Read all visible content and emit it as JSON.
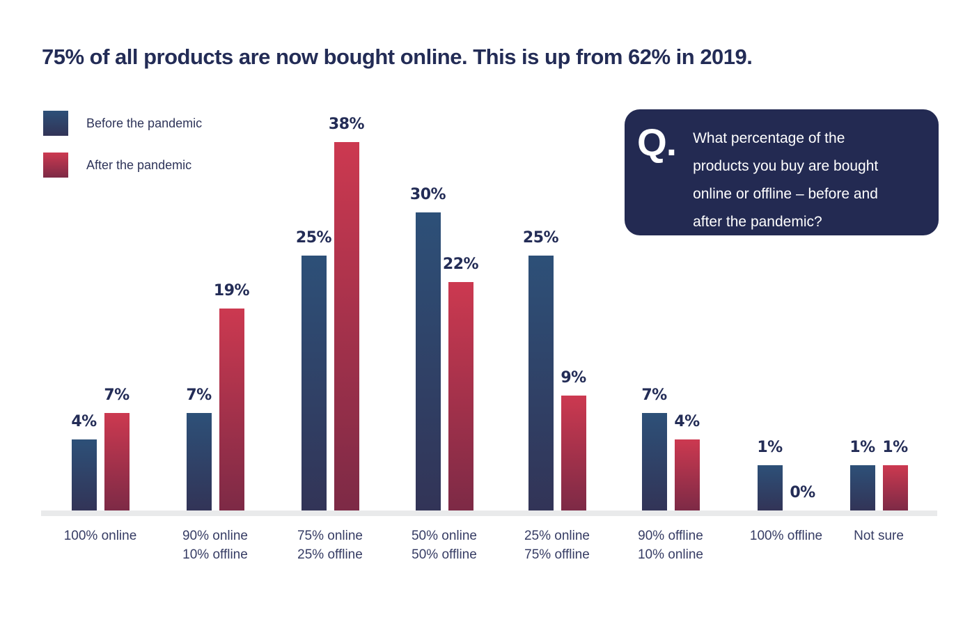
{
  "title": "75% of all products are now bought online. This is up from 62% in 2019.",
  "legend": {
    "items": [
      {
        "label": "Before the pandemic",
        "color_top": "#2d5078",
        "color_bottom": "#323457"
      },
      {
        "label": "After the pandemic",
        "color_top": "#cc3950",
        "color_bottom": "#7d2a46"
      }
    ]
  },
  "question": {
    "mark": "Q.",
    "text": "What percentage of the products you buy are bought online or offline – before and after the pandemic?",
    "lines": [
      "What percentage of the",
      "products you buy are bought",
      "online or offline – before and",
      "after the pandemic?"
    ]
  },
  "chart_data": {
    "type": "bar",
    "unit": "%",
    "categories": [
      [
        "100% online"
      ],
      [
        "90% online",
        "10% offline"
      ],
      [
        "75% online",
        "25% offline"
      ],
      [
        "50% online",
        "50% offline"
      ],
      [
        "25% online",
        "75% offline"
      ],
      [
        "90% offline",
        "10% online"
      ],
      [
        "100% offline"
      ],
      [
        "Not sure"
      ]
    ],
    "series": [
      {
        "name": "Before the pandemic",
        "values": [
          4,
          7,
          25,
          30,
          25,
          7,
          1,
          1
        ]
      },
      {
        "name": "After the pandemic",
        "values": [
          7,
          19,
          38,
          22,
          9,
          4,
          0,
          1
        ]
      }
    ],
    "value_labels_shown": true,
    "xlabel": "",
    "ylabel": "",
    "grid": false,
    "axis_shown": "baseline-only",
    "legend_position": "top-left"
  },
  "colors": {
    "background": "#ffffff",
    "navy_text": "#232c56",
    "category_text": "#363c64",
    "bar_blue_top": "#2d5078",
    "bar_blue_bottom": "#323457",
    "bar_red_top": "#cc3950",
    "bar_red_bottom": "#7d2a46",
    "question_box_bg": "#232a52",
    "axis_line": "#e9eaeb"
  }
}
